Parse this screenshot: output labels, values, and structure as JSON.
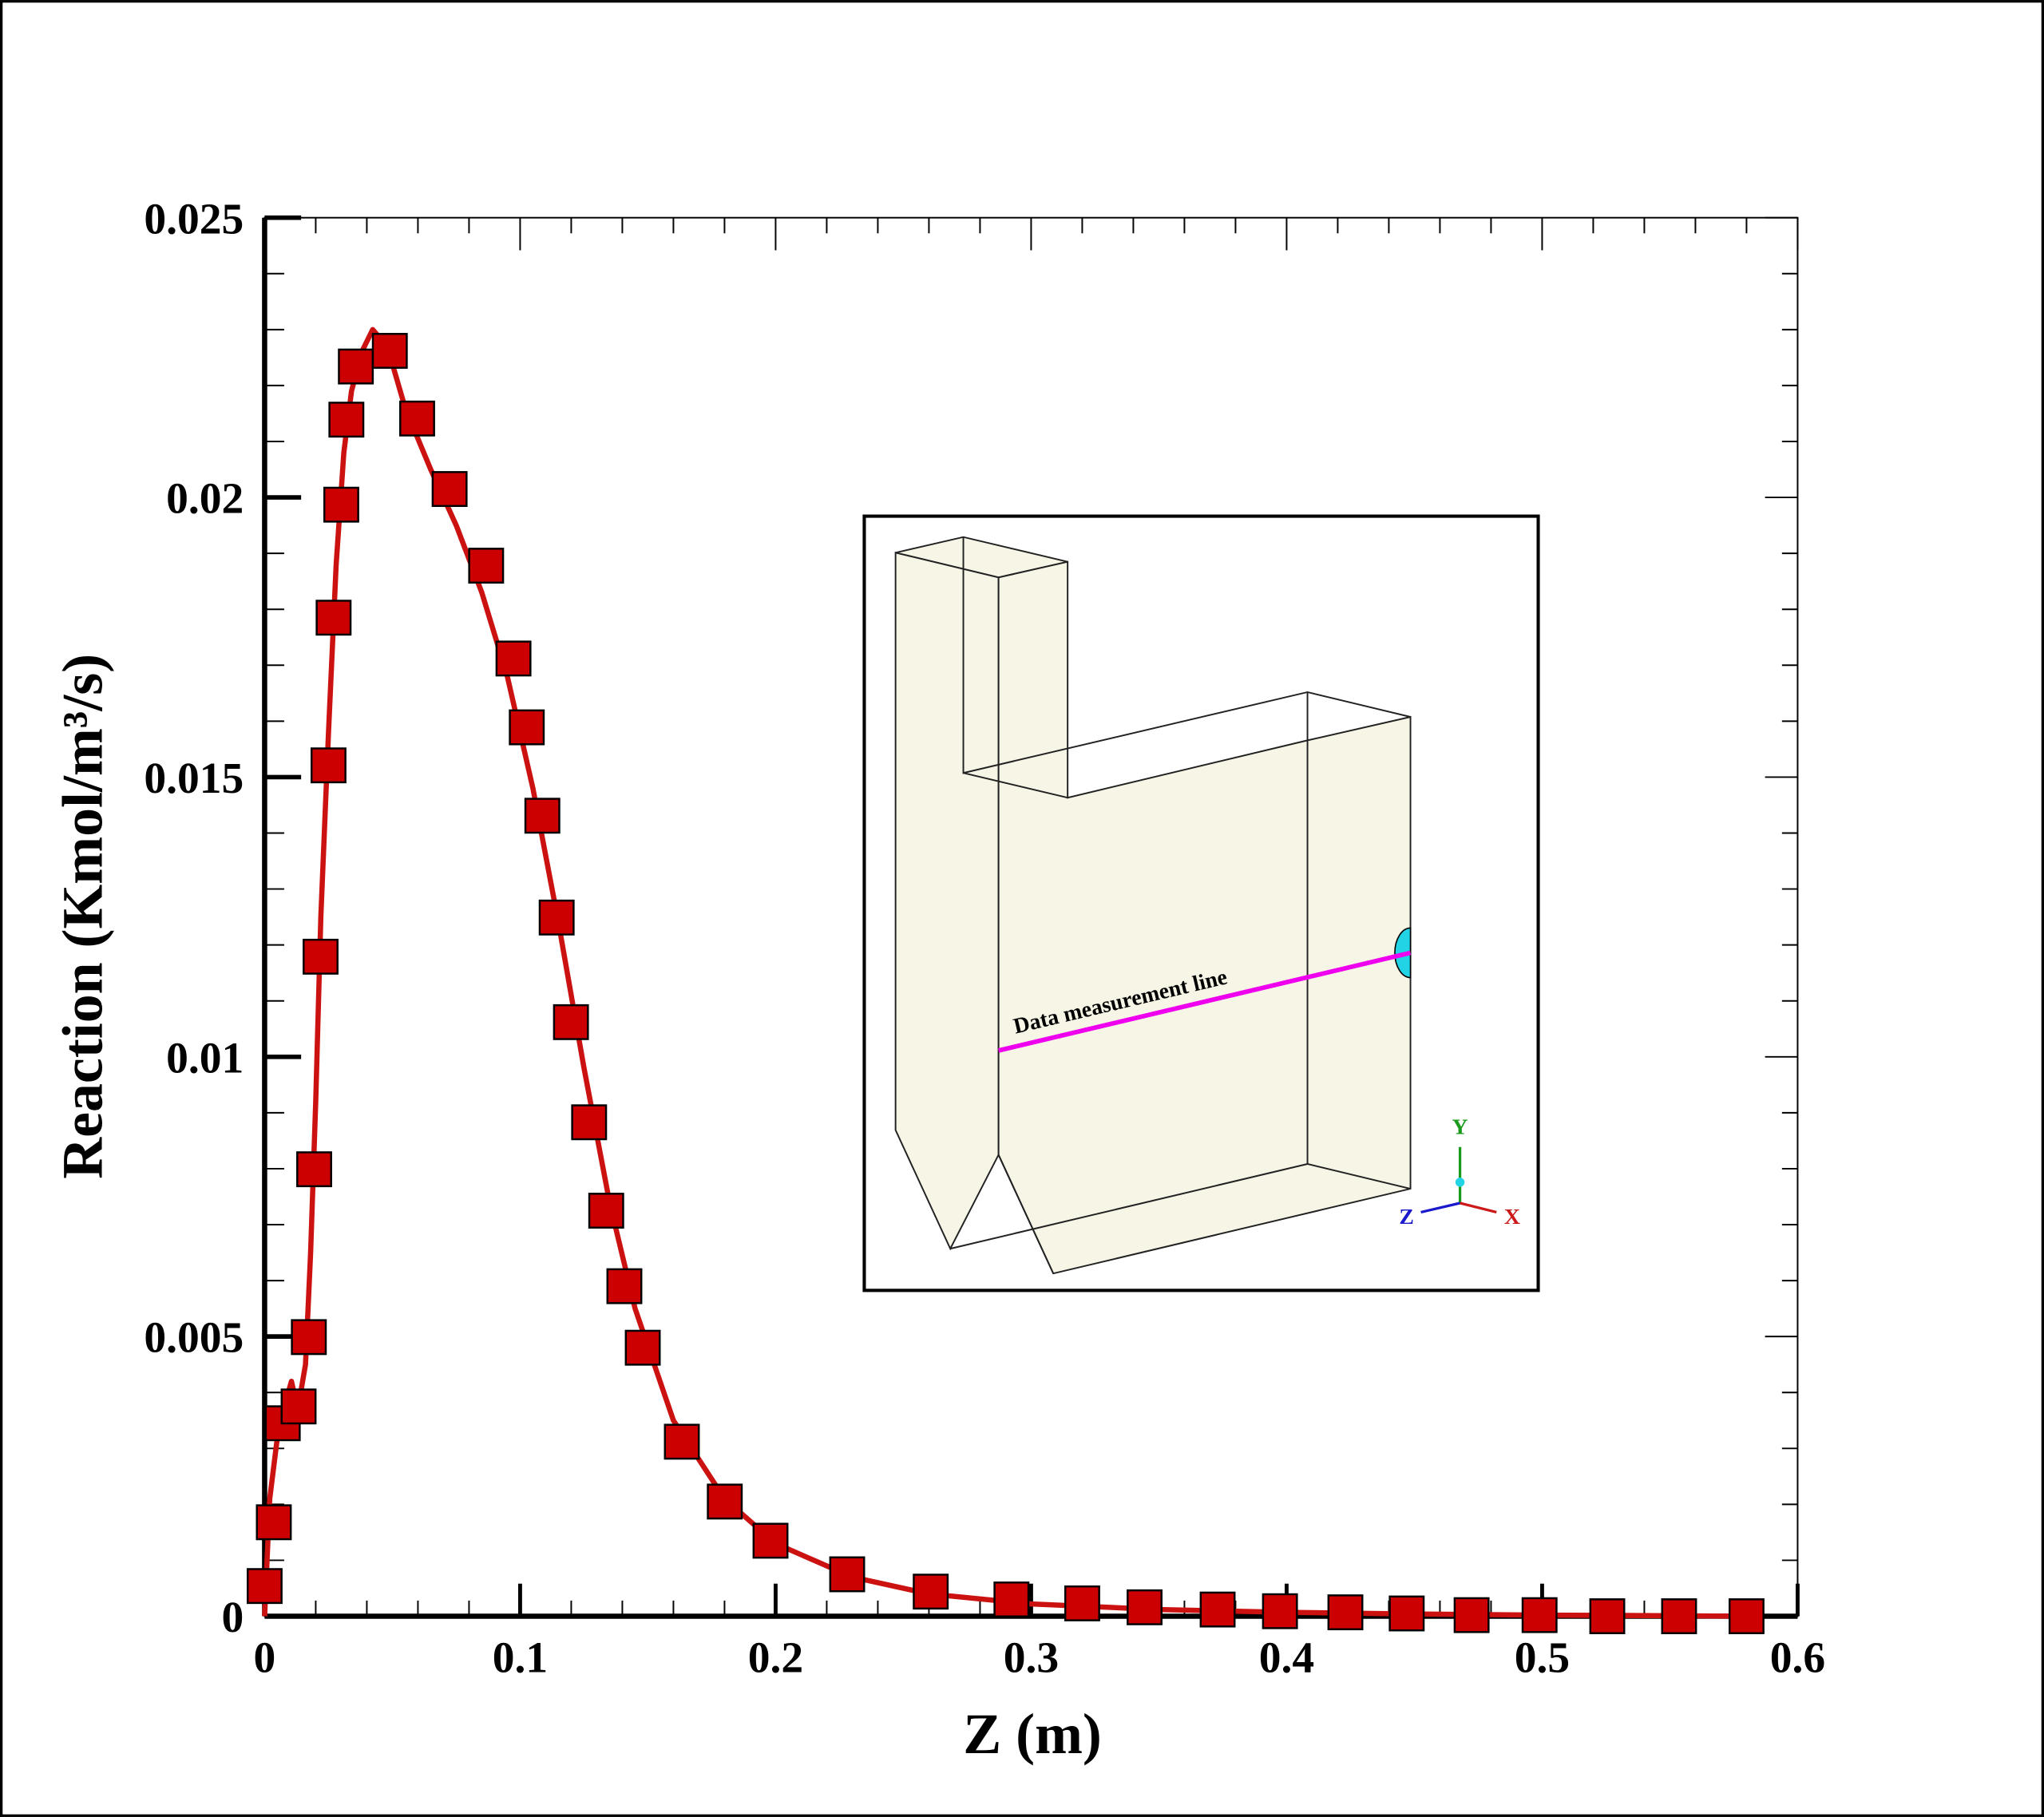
{
  "chart_data": {
    "type": "line-scatter",
    "xlabel": "Z (m)",
    "ylabel": "Reaction (Kmol/m³/s)",
    "xlim": [
      0,
      0.6
    ],
    "xticks": [
      0,
      0.1,
      0.2,
      0.3,
      0.4,
      0.5,
      0.6
    ],
    "ylim": [
      0,
      0.025
    ],
    "yticks": [
      0,
      0.005,
      0.01,
      0.015,
      0.02,
      0.025
    ],
    "series": [
      {
        "kind": "line",
        "color": "#cc1111",
        "x": [
          0,
          0.002,
          0.005,
          0.008,
          0.0105,
          0.013,
          0.016,
          0.018,
          0.02,
          0.022,
          0.025,
          0.028,
          0.031,
          0.034,
          0.038,
          0.0423,
          0.048,
          0.055,
          0.065,
          0.075,
          0.085,
          0.095,
          0.105,
          0.115,
          0.125,
          0.135,
          0.145,
          0.16,
          0.18,
          0.2,
          0.23,
          0.26,
          0.3,
          0.35,
          0.4,
          0.45,
          0.5,
          0.55,
          0.58
        ],
        "values": [
          0,
          0.0021,
          0.0032,
          0.0038,
          0.0042,
          0.0037,
          0.0045,
          0.0065,
          0.0092,
          0.0125,
          0.0158,
          0.0188,
          0.0208,
          0.0219,
          0.0226,
          0.023,
          0.0227,
          0.0216,
          0.0205,
          0.0195,
          0.0183,
          0.0168,
          0.0148,
          0.0124,
          0.0098,
          0.0074,
          0.0055,
          0.0035,
          0.0021,
          0.0013,
          0.0007,
          0.0004,
          0.00022,
          0.00012,
          7e-05,
          4e-05,
          2e-05,
          1e-05,
          0
        ]
      },
      {
        "kind": "markers",
        "color": "#cc0000",
        "x": [
          0,
          0.0036,
          0.0071,
          0.0133,
          0.0173,
          0.0194,
          0.0219,
          0.025,
          0.027,
          0.03,
          0.032,
          0.0357,
          0.049,
          0.0597,
          0.0724,
          0.0867,
          0.0974,
          0.1026,
          0.1087,
          0.1143,
          0.1199,
          0.127,
          0.1337,
          0.1408,
          0.148,
          0.1633,
          0.1801,
          0.198,
          0.228,
          0.2607,
          0.2923,
          0.32,
          0.3444,
          0.373,
          0.3974,
          0.423,
          0.447,
          0.4724,
          0.499,
          0.5255,
          0.5536,
          0.58
        ],
        "values": [
          0.00054,
          0.00168,
          0.00345,
          0.00375,
          0.00499,
          0.00799,
          0.01179,
          0.01521,
          0.01785,
          0.01987,
          0.02139,
          0.02234,
          0.02262,
          0.02141,
          0.02015,
          0.01878,
          0.01712,
          0.01589,
          0.01431,
          0.01249,
          0.01062,
          0.00883,
          0.00725,
          0.0059,
          0.0048,
          0.00312,
          0.00205,
          0.00135,
          0.00075,
          0.00044,
          0.0003,
          0.00023,
          0.00016,
          0.00012,
          9e-05,
          7e-05,
          5e-05,
          2e-05,
          2e-05,
          0,
          0,
          0
        ]
      }
    ],
    "inset": {
      "label": "Data measurement line",
      "axes": {
        "x": "X",
        "y": "Y",
        "z": "Z"
      }
    }
  }
}
